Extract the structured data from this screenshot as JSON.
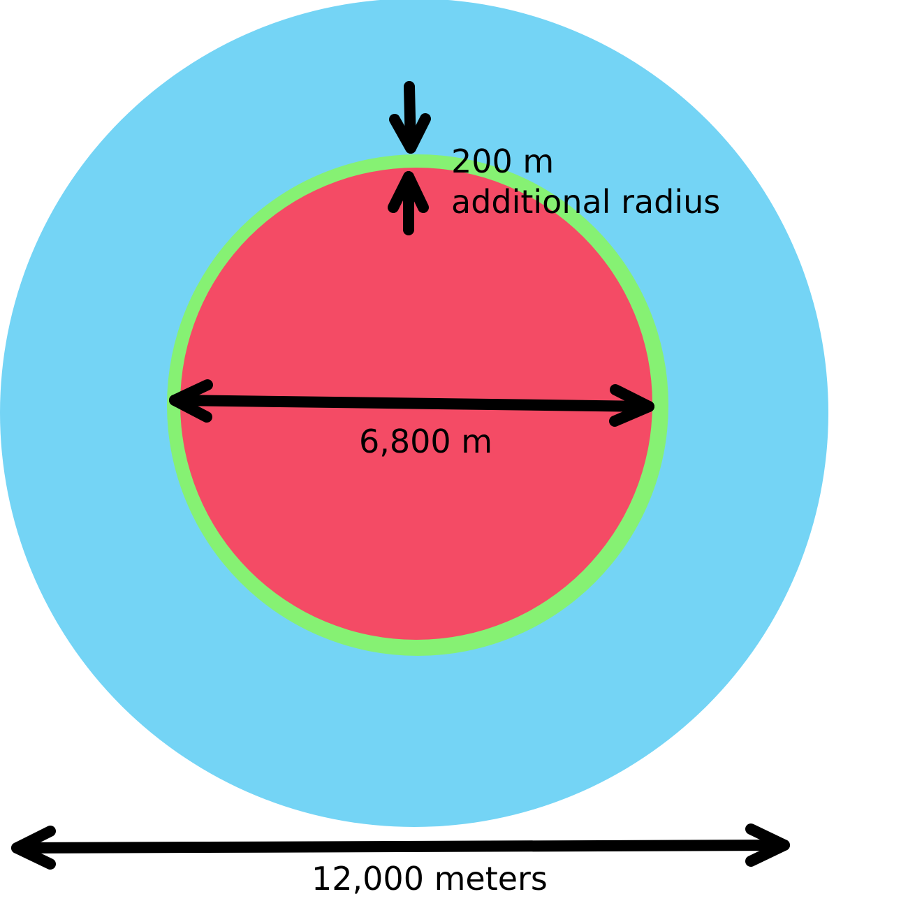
{
  "colors": {
    "outer_circle": "#74D4F5",
    "ring": "#86F173",
    "inner_circle": "#F44B65",
    "arrows": "#000000",
    "text": "#000000"
  },
  "labels": {
    "additional_radius_value": "200 m",
    "additional_radius_text": "additional radius",
    "inner_diameter": "6,800 m",
    "outer_diameter": "12,000 meters"
  }
}
